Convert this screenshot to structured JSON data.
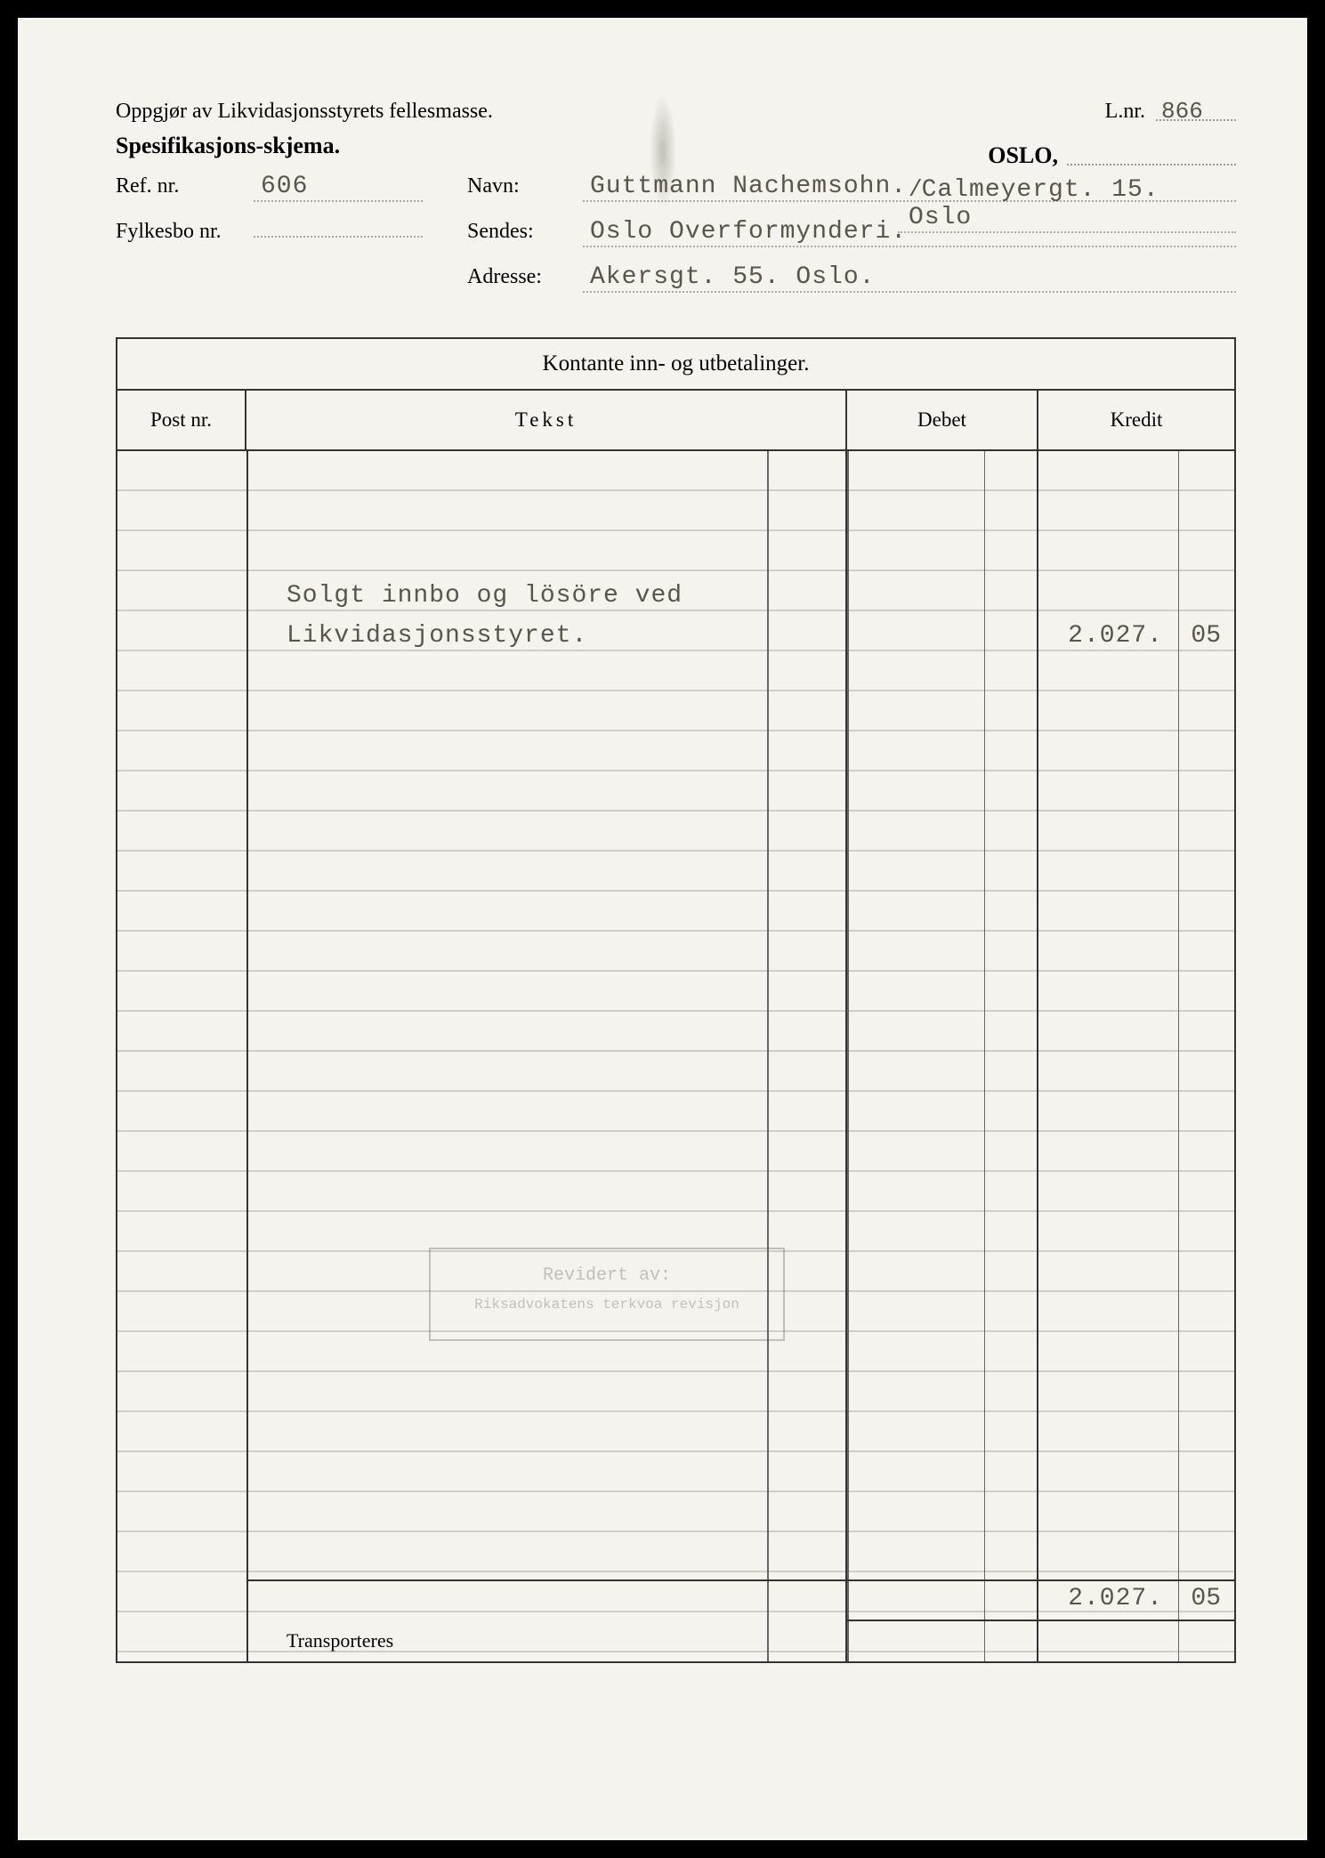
{
  "header": {
    "title1": "Oppgjør av Likvidasjonsstyrets fellesmasse.",
    "title2": "Spesifikasjons-skjema.",
    "lnr_label": "L.nr.",
    "lnr_value": "866",
    "oslo_label": "OSLO,"
  },
  "form": {
    "refnr_label": "Ref. nr.",
    "refnr_value": "606",
    "navn_label": "Navn:",
    "navn_value": "Guttmann Nachemsohn.",
    "address_inline": "Calmeyergt. 15. Oslo",
    "fylkesbo_label": "Fylkesbo nr.",
    "fylkesbo_value": "",
    "sendes_label": "Sendes:",
    "sendes_value": "Oslo Overformynderi.",
    "adresse_label": "Adresse:",
    "adresse_value": "Akersgt. 55. Oslo."
  },
  "table": {
    "title": "Kontante inn- og utbetalinger.",
    "col_postnr": "Post nr.",
    "col_tekst": "Tekst",
    "col_debet": "Debet",
    "col_kredit": "Kredit",
    "entry_line1": "Solgt innbo og lösöre ved",
    "entry_line2": "Likvidasjonsstyret.",
    "entry_kredit": "2.027.",
    "entry_kredit_cents": "05",
    "total_kredit": "2.027.",
    "total_kredit_cents": "05",
    "transporteres": "Transporteres"
  },
  "stamp": {
    "line1": "Revidert av:",
    "line2": "Riksadvokatens  terkvoa revisjon"
  },
  "colors": {
    "page_bg": "#f5f3ee",
    "text": "#1a1a1a",
    "typed": "#5a5449",
    "rule": "#333333",
    "dotted": "#999999"
  }
}
